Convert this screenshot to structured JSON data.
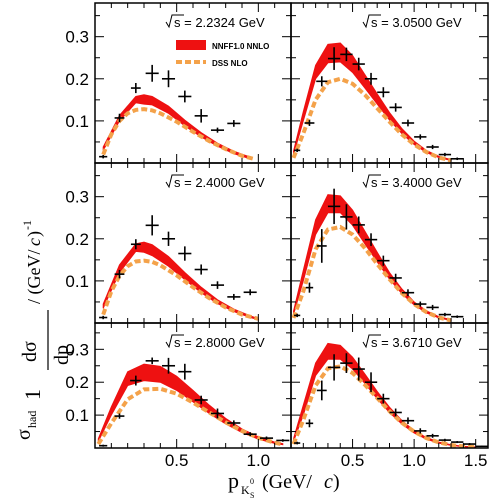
{
  "colors": {
    "nnff": "#ee1111",
    "dss": "#f4a24a",
    "data": "#000000",
    "frame": "#000000"
  },
  "chart_data": {
    "type": "scatter",
    "layout": "3x2 grid",
    "legend": {
      "placement": "top-right of top-left panel",
      "entries": [
        {
          "name": "NNFF1.0 NNLO",
          "style": "red band"
        },
        {
          "name": "DSS NLO",
          "style": "orange dashed line"
        }
      ]
    },
    "xlabel_main": "p",
    "xlabel_sub": "K",
    "xlabel_subsub": "S",
    "xlabel_sup": "0",
    "xlabel_unit": "(GeV/",
    "xlabel_unit_c": "c",
    "xlabel_unit_close": ")",
    "ylabel_one": "1",
    "ylabel_sigma_had": "σ",
    "ylabel_had": "had",
    "ylabel_d": "dσ",
    "ylabel_dp": "dp",
    "ylabel_unit": "/ (GeV/",
    "ylabel_unit_c": "c",
    "ylabel_unit_close": ")",
    "ylabel_exp": "-1",
    "left_xticks": [
      "0.5",
      "1.0"
    ],
    "right_xticks": [
      "0.5",
      "1.0",
      "1.5"
    ],
    "yticks": [
      "0.1",
      "0.2",
      "0.3"
    ],
    "left_xlim": [
      0,
      1.2
    ],
    "right_xlim": [
      0,
      1.6
    ],
    "ylim": [
      0,
      0.38
    ],
    "panels": [
      {
        "energy": "2.2324 GeV",
        "data_points": [
          {
            "x": 0.05,
            "y": 0.015,
            "xerr": 0.025,
            "yerr": 0.004
          },
          {
            "x": 0.15,
            "y": 0.107,
            "xerr": 0.03,
            "yerr": 0.01
          },
          {
            "x": 0.25,
            "y": 0.178,
            "xerr": 0.03,
            "yerr": 0.012
          },
          {
            "x": 0.35,
            "y": 0.213,
            "xerr": 0.04,
            "yerr": 0.02
          },
          {
            "x": 0.45,
            "y": 0.2,
            "xerr": 0.04,
            "yerr": 0.02
          },
          {
            "x": 0.55,
            "y": 0.158,
            "xerr": 0.04,
            "yerr": 0.014
          },
          {
            "x": 0.65,
            "y": 0.112,
            "xerr": 0.04,
            "yerr": 0.016
          },
          {
            "x": 0.75,
            "y": 0.078,
            "xerr": 0.04,
            "yerr": 0.006
          },
          {
            "x": 0.85,
            "y": 0.094,
            "xerr": 0.04,
            "yerr": 0.008
          }
        ],
        "nnff_band": {
          "x": [
            0.05,
            0.15,
            0.25,
            0.3,
            0.35,
            0.45,
            0.55,
            0.65,
            0.75,
            0.85,
            0.95
          ],
          "low": [
            0.03,
            0.1,
            0.143,
            0.14,
            0.138,
            0.118,
            0.088,
            0.062,
            0.04,
            0.022,
            0.01
          ],
          "high": [
            0.038,
            0.113,
            0.158,
            0.162,
            0.158,
            0.135,
            0.102,
            0.072,
            0.047,
            0.028,
            0.014
          ]
        },
        "dss": {
          "x": [
            0.05,
            0.1,
            0.15,
            0.2,
            0.25,
            0.3,
            0.35,
            0.4,
            0.5,
            0.6,
            0.7,
            0.8,
            0.9,
            0.97
          ],
          "y": [
            0.02,
            0.068,
            0.1,
            0.118,
            0.126,
            0.128,
            0.125,
            0.118,
            0.098,
            0.074,
            0.052,
            0.033,
            0.017,
            0.01
          ]
        }
      },
      {
        "energy": "3.0500 GeV",
        "data_points": [
          {
            "x": 0.05,
            "y": 0.03,
            "xerr": 0.025,
            "yerr": 0.004
          },
          {
            "x": 0.15,
            "y": 0.095,
            "xerr": 0.04,
            "yerr": 0.007
          },
          {
            "x": 0.25,
            "y": 0.194,
            "xerr": 0.045,
            "yerr": 0.012
          },
          {
            "x": 0.35,
            "y": 0.248,
            "xerr": 0.05,
            "yerr": 0.027
          },
          {
            "x": 0.45,
            "y": 0.258,
            "xerr": 0.05,
            "yerr": 0.016
          },
          {
            "x": 0.55,
            "y": 0.235,
            "xerr": 0.05,
            "yerr": 0.015
          },
          {
            "x": 0.65,
            "y": 0.2,
            "xerr": 0.05,
            "yerr": 0.014
          },
          {
            "x": 0.75,
            "y": 0.168,
            "xerr": 0.05,
            "yerr": 0.012
          },
          {
            "x": 0.85,
            "y": 0.132,
            "xerr": 0.05,
            "yerr": 0.01
          },
          {
            "x": 0.95,
            "y": 0.095,
            "xerr": 0.05,
            "yerr": 0.008
          },
          {
            "x": 1.05,
            "y": 0.062,
            "xerr": 0.05,
            "yerr": 0.006
          },
          {
            "x": 1.15,
            "y": 0.038,
            "xerr": 0.05,
            "yerr": 0.005
          },
          {
            "x": 1.25,
            "y": 0.02,
            "xerr": 0.05,
            "yerr": 0.004
          },
          {
            "x": 1.35,
            "y": 0.01,
            "xerr": 0.05,
            "yerr": 0.003
          }
        ],
        "nnff_band": {
          "x": [
            0.02,
            0.1,
            0.2,
            0.3,
            0.4,
            0.5,
            0.6,
            0.7,
            0.8,
            0.9,
            1.0,
            1.1,
            1.2,
            1.3
          ],
          "low": [
            0.02,
            0.1,
            0.2,
            0.238,
            0.24,
            0.215,
            0.178,
            0.14,
            0.102,
            0.07,
            0.044,
            0.025,
            0.013,
            0.006
          ],
          "high": [
            0.028,
            0.122,
            0.232,
            0.282,
            0.285,
            0.255,
            0.21,
            0.164,
            0.12,
            0.082,
            0.052,
            0.03,
            0.016,
            0.008
          ]
        },
        "dss": {
          "x": [
            0.02,
            0.1,
            0.2,
            0.3,
            0.4,
            0.5,
            0.6,
            0.7,
            0.8,
            0.9,
            1.0,
            1.1,
            1.2,
            1.3
          ],
          "y": [
            0.012,
            0.07,
            0.15,
            0.192,
            0.2,
            0.188,
            0.162,
            0.13,
            0.098,
            0.068,
            0.044,
            0.026,
            0.013,
            0.006
          ]
        }
      },
      {
        "energy": "2.4000 GeV",
        "data_points": [
          {
            "x": 0.05,
            "y": 0.013,
            "xerr": 0.025,
            "yerr": 0.004
          },
          {
            "x": 0.15,
            "y": 0.116,
            "xerr": 0.03,
            "yerr": 0.01
          },
          {
            "x": 0.25,
            "y": 0.187,
            "xerr": 0.03,
            "yerr": 0.012
          },
          {
            "x": 0.35,
            "y": 0.232,
            "xerr": 0.04,
            "yerr": 0.024
          },
          {
            "x": 0.45,
            "y": 0.2,
            "xerr": 0.04,
            "yerr": 0.017
          },
          {
            "x": 0.55,
            "y": 0.165,
            "xerr": 0.04,
            "yerr": 0.017
          },
          {
            "x": 0.65,
            "y": 0.127,
            "xerr": 0.04,
            "yerr": 0.012
          },
          {
            "x": 0.75,
            "y": 0.09,
            "xerr": 0.04,
            "yerr": 0.009
          },
          {
            "x": 0.85,
            "y": 0.062,
            "xerr": 0.04,
            "yerr": 0.007
          },
          {
            "x": 0.95,
            "y": 0.073,
            "xerr": 0.04,
            "yerr": 0.007
          }
        ],
        "nnff_band": {
          "x": [
            0.05,
            0.15,
            0.25,
            0.3,
            0.35,
            0.45,
            0.55,
            0.65,
            0.75,
            0.85,
            0.95,
            1.0
          ],
          "low": [
            0.035,
            0.12,
            0.17,
            0.168,
            0.16,
            0.135,
            0.103,
            0.072,
            0.046,
            0.027,
            0.013,
            0.008
          ],
          "high": [
            0.045,
            0.138,
            0.188,
            0.192,
            0.186,
            0.158,
            0.12,
            0.085,
            0.055,
            0.033,
            0.017,
            0.01
          ]
        },
        "dss": {
          "x": [
            0.05,
            0.1,
            0.15,
            0.2,
            0.25,
            0.3,
            0.35,
            0.4,
            0.5,
            0.6,
            0.7,
            0.8,
            0.9,
            1.0
          ],
          "y": [
            0.02,
            0.075,
            0.112,
            0.135,
            0.146,
            0.148,
            0.145,
            0.137,
            0.113,
            0.085,
            0.059,
            0.037,
            0.02,
            0.01
          ]
        }
      },
      {
        "energy": "3.4000 GeV",
        "data_points": [
          {
            "x": 0.05,
            "y": 0.018,
            "xerr": 0.025,
            "yerr": 0.004
          },
          {
            "x": 0.15,
            "y": 0.084,
            "xerr": 0.03,
            "yerr": 0.012
          },
          {
            "x": 0.25,
            "y": 0.183,
            "xerr": 0.04,
            "yerr": 0.04
          },
          {
            "x": 0.35,
            "y": 0.277,
            "xerr": 0.05,
            "yerr": 0.042
          },
          {
            "x": 0.45,
            "y": 0.252,
            "xerr": 0.05,
            "yerr": 0.03
          },
          {
            "x": 0.55,
            "y": 0.233,
            "xerr": 0.05,
            "yerr": 0.02
          },
          {
            "x": 0.65,
            "y": 0.198,
            "xerr": 0.05,
            "yerr": 0.015
          },
          {
            "x": 0.75,
            "y": 0.148,
            "xerr": 0.05,
            "yerr": 0.012
          },
          {
            "x": 0.85,
            "y": 0.107,
            "xerr": 0.05,
            "yerr": 0.01
          },
          {
            "x": 0.95,
            "y": 0.072,
            "xerr": 0.05,
            "yerr": 0.008
          },
          {
            "x": 1.05,
            "y": 0.045,
            "xerr": 0.05,
            "yerr": 0.006
          },
          {
            "x": 1.15,
            "y": 0.037,
            "xerr": 0.05,
            "yerr": 0.006
          },
          {
            "x": 1.25,
            "y": 0.02,
            "xerr": 0.05,
            "yerr": 0.004
          },
          {
            "x": 1.35,
            "y": 0.015,
            "xerr": 0.05,
            "yerr": 0.003
          }
        ],
        "nnff_band": {
          "x": [
            0.02,
            0.1,
            0.2,
            0.3,
            0.4,
            0.5,
            0.6,
            0.7,
            0.8,
            0.9,
            1.0,
            1.1,
            1.2,
            1.3
          ],
          "low": [
            0.02,
            0.1,
            0.21,
            0.262,
            0.262,
            0.232,
            0.188,
            0.145,
            0.104,
            0.07,
            0.043,
            0.024,
            0.012,
            0.006
          ],
          "high": [
            0.028,
            0.125,
            0.245,
            0.305,
            0.302,
            0.268,
            0.218,
            0.168,
            0.12,
            0.081,
            0.05,
            0.029,
            0.015,
            0.008
          ]
        },
        "dss": {
          "x": [
            0.02,
            0.1,
            0.2,
            0.3,
            0.4,
            0.5,
            0.6,
            0.7,
            0.8,
            0.9,
            1.0,
            1.1,
            1.2,
            1.3
          ],
          "y": [
            0.012,
            0.075,
            0.175,
            0.222,
            0.228,
            0.21,
            0.178,
            0.14,
            0.104,
            0.071,
            0.045,
            0.026,
            0.013,
            0.006
          ]
        }
      },
      {
        "energy": "2.8000 GeV",
        "data_points": [
          {
            "x": 0.05,
            "y": 0.007,
            "xerr": 0.025,
            "yerr": 0.003
          },
          {
            "x": 0.15,
            "y": 0.097,
            "xerr": 0.03,
            "yerr": 0.008
          },
          {
            "x": 0.25,
            "y": 0.205,
            "xerr": 0.035,
            "yerr": 0.015
          },
          {
            "x": 0.35,
            "y": 0.265,
            "xerr": 0.04,
            "yerr": 0.01
          },
          {
            "x": 0.45,
            "y": 0.25,
            "xerr": 0.04,
            "yerr": 0.024
          },
          {
            "x": 0.55,
            "y": 0.232,
            "xerr": 0.04,
            "yerr": 0.024
          },
          {
            "x": 0.65,
            "y": 0.146,
            "xerr": 0.04,
            "yerr": 0.013
          },
          {
            "x": 0.75,
            "y": 0.105,
            "xerr": 0.04,
            "yerr": 0.015
          },
          {
            "x": 0.85,
            "y": 0.076,
            "xerr": 0.04,
            "yerr": 0.008
          },
          {
            "x": 0.95,
            "y": 0.042,
            "xerr": 0.04,
            "yerr": 0.006
          },
          {
            "x": 1.05,
            "y": 0.03,
            "xerr": 0.04,
            "yerr": 0.005
          },
          {
            "x": 1.15,
            "y": 0.023,
            "xerr": 0.04,
            "yerr": 0.004
          }
        ],
        "nnff_band": {
          "x": [
            0.02,
            0.1,
            0.2,
            0.3,
            0.4,
            0.5,
            0.6,
            0.7,
            0.8,
            0.9,
            1.0,
            1.1,
            1.15
          ],
          "low": [
            0.02,
            0.1,
            0.19,
            0.205,
            0.2,
            0.175,
            0.14,
            0.105,
            0.073,
            0.047,
            0.027,
            0.014,
            0.01
          ],
          "high": [
            0.028,
            0.125,
            0.232,
            0.255,
            0.248,
            0.218,
            0.175,
            0.13,
            0.09,
            0.058,
            0.034,
            0.018,
            0.013
          ]
        },
        "dss": {
          "x": [
            0.02,
            0.1,
            0.2,
            0.3,
            0.4,
            0.5,
            0.6,
            0.7,
            0.8,
            0.9,
            1.0,
            1.1,
            1.15
          ],
          "y": [
            0.012,
            0.075,
            0.148,
            0.178,
            0.18,
            0.165,
            0.138,
            0.108,
            0.078,
            0.052,
            0.031,
            0.016,
            0.011
          ]
        }
      },
      {
        "energy": "3.6710 GeV",
        "data_points": [
          {
            "x": 0.05,
            "y": 0.015,
            "xerr": 0.025,
            "yerr": 0.004
          },
          {
            "x": 0.15,
            "y": 0.075,
            "xerr": 0.03,
            "yerr": 0.012
          },
          {
            "x": 0.25,
            "y": 0.175,
            "xerr": 0.04,
            "yerr": 0.03
          },
          {
            "x": 0.35,
            "y": 0.245,
            "xerr": 0.05,
            "yerr": 0.04
          },
          {
            "x": 0.45,
            "y": 0.258,
            "xerr": 0.05,
            "yerr": 0.03
          },
          {
            "x": 0.55,
            "y": 0.24,
            "xerr": 0.05,
            "yerr": 0.035
          },
          {
            "x": 0.65,
            "y": 0.2,
            "xerr": 0.05,
            "yerr": 0.03
          },
          {
            "x": 0.75,
            "y": 0.15,
            "xerr": 0.05,
            "yerr": 0.015
          },
          {
            "x": 0.85,
            "y": 0.108,
            "xerr": 0.05,
            "yerr": 0.012
          },
          {
            "x": 0.95,
            "y": 0.083,
            "xerr": 0.05,
            "yerr": 0.01
          },
          {
            "x": 1.05,
            "y": 0.052,
            "xerr": 0.05,
            "yerr": 0.008
          },
          {
            "x": 1.15,
            "y": 0.037,
            "xerr": 0.05,
            "yerr": 0.006
          },
          {
            "x": 1.25,
            "y": 0.024,
            "xerr": 0.05,
            "yerr": 0.004
          },
          {
            "x": 1.35,
            "y": 0.018,
            "xerr": 0.05,
            "yerr": 0.003
          },
          {
            "x": 1.45,
            "y": 0.012,
            "xerr": 0.05,
            "yerr": 0.003
          },
          {
            "x": 1.55,
            "y": 0.005,
            "xerr": 0.05,
            "yerr": 0.002
          }
        ],
        "nnff_band": {
          "x": [
            0.02,
            0.1,
            0.2,
            0.3,
            0.4,
            0.5,
            0.6,
            0.7,
            0.8,
            0.9,
            1.0,
            1.1,
            1.2,
            1.3,
            1.4,
            1.5
          ],
          "low": [
            0.02,
            0.1,
            0.22,
            0.27,
            0.27,
            0.24,
            0.196,
            0.15,
            0.108,
            0.073,
            0.046,
            0.027,
            0.015,
            0.008,
            0.004,
            0.002
          ],
          "high": [
            0.028,
            0.13,
            0.258,
            0.318,
            0.312,
            0.276,
            0.225,
            0.172,
            0.124,
            0.084,
            0.053,
            0.032,
            0.018,
            0.01,
            0.005,
            0.003
          ]
        },
        "dss": {
          "x": [
            0.02,
            0.1,
            0.2,
            0.3,
            0.4,
            0.5,
            0.6,
            0.7,
            0.8,
            0.9,
            1.0,
            1.1,
            1.2,
            1.3,
            1.4,
            1.5
          ],
          "y": [
            0.012,
            0.085,
            0.19,
            0.242,
            0.248,
            0.228,
            0.192,
            0.152,
            0.112,
            0.077,
            0.05,
            0.03,
            0.017,
            0.009,
            0.005,
            0.002
          ]
        }
      }
    ]
  }
}
